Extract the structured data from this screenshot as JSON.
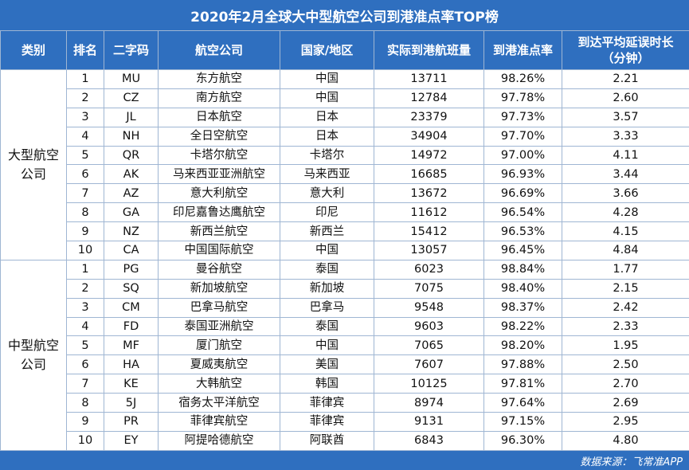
{
  "title": "2020年2月全球大中型航空公司到港准点率TOP榜",
  "headers": {
    "category": "类别",
    "rank": "排名",
    "code": "二字码",
    "airline": "航空公司",
    "region": "国家/地区",
    "flights": "实际到港航班量",
    "ontime": "到港准点率",
    "delay_line1": "到达平均延误时长",
    "delay_line2": "（分钟）"
  },
  "groups": [
    {
      "category": "大型航空公司",
      "rows": [
        {
          "rank": "1",
          "code": "MU",
          "airline": "东方航空",
          "region": "中国",
          "flights": "13711",
          "ontime": "98.26%",
          "delay": "2.21"
        },
        {
          "rank": "2",
          "code": "CZ",
          "airline": "南方航空",
          "region": "中国",
          "flights": "12784",
          "ontime": "97.78%",
          "delay": "2.60"
        },
        {
          "rank": "3",
          "code": "JL",
          "airline": "日本航空",
          "region": "日本",
          "flights": "23379",
          "ontime": "97.73%",
          "delay": "3.57"
        },
        {
          "rank": "4",
          "code": "NH",
          "airline": "全日空航空",
          "region": "日本",
          "flights": "34904",
          "ontime": "97.70%",
          "delay": "3.33"
        },
        {
          "rank": "5",
          "code": "QR",
          "airline": "卡塔尔航空",
          "region": "卡塔尔",
          "flights": "14972",
          "ontime": "97.00%",
          "delay": "4.11"
        },
        {
          "rank": "6",
          "code": "AK",
          "airline": "马来西亚亚洲航空",
          "region": "马来西亚",
          "flights": "16685",
          "ontime": "96.93%",
          "delay": "3.44"
        },
        {
          "rank": "7",
          "code": "AZ",
          "airline": "意大利航空",
          "region": "意大利",
          "flights": "13672",
          "ontime": "96.69%",
          "delay": "3.66"
        },
        {
          "rank": "8",
          "code": "GA",
          "airline": "印尼嘉鲁达鹰航空",
          "region": "印尼",
          "flights": "11612",
          "ontime": "96.54%",
          "delay": "4.28"
        },
        {
          "rank": "9",
          "code": "NZ",
          "airline": "新西兰航空",
          "region": "新西兰",
          "flights": "15412",
          "ontime": "96.53%",
          "delay": "4.15"
        },
        {
          "rank": "10",
          "code": "CA",
          "airline": "中国国际航空",
          "region": "中国",
          "flights": "13057",
          "ontime": "96.45%",
          "delay": "4.84"
        }
      ]
    },
    {
      "category": "中型航空公司",
      "rows": [
        {
          "rank": "1",
          "code": "PG",
          "airline": "曼谷航空",
          "region": "泰国",
          "flights": "6023",
          "ontime": "98.84%",
          "delay": "1.77"
        },
        {
          "rank": "2",
          "code": "SQ",
          "airline": "新加坡航空",
          "region": "新加坡",
          "flights": "7075",
          "ontime": "98.40%",
          "delay": "2.15"
        },
        {
          "rank": "3",
          "code": "CM",
          "airline": "巴拿马航空",
          "region": "巴拿马",
          "flights": "9548",
          "ontime": "98.37%",
          "delay": "2.42"
        },
        {
          "rank": "4",
          "code": "FD",
          "airline": "泰国亚洲航空",
          "region": "泰国",
          "flights": "9603",
          "ontime": "98.22%",
          "delay": "2.33"
        },
        {
          "rank": "5",
          "code": "MF",
          "airline": "厦门航空",
          "region": "中国",
          "flights": "7065",
          "ontime": "98.20%",
          "delay": "1.95"
        },
        {
          "rank": "6",
          "code": "HA",
          "airline": "夏威夷航空",
          "region": "美国",
          "flights": "7607",
          "ontime": "97.88%",
          "delay": "2.50"
        },
        {
          "rank": "7",
          "code": "KE",
          "airline": "大韩航空",
          "region": "韩国",
          "flights": "10125",
          "ontime": "97.81%",
          "delay": "2.70"
        },
        {
          "rank": "8",
          "code": "5J",
          "airline": "宿务太平洋航空",
          "region": "菲律宾",
          "flights": "8974",
          "ontime": "97.64%",
          "delay": "2.69"
        },
        {
          "rank": "9",
          "code": "PR",
          "airline": "菲律宾航空",
          "region": "菲律宾",
          "flights": "9131",
          "ontime": "97.15%",
          "delay": "2.95"
        },
        {
          "rank": "10",
          "code": "EY",
          "airline": "阿提哈德航空",
          "region": "阿联酋",
          "flights": "6843",
          "ontime": "96.30%",
          "delay": "4.80"
        }
      ]
    }
  ],
  "footer": "数据来源：飞常准APP",
  "colors": {
    "header_bg": "#2f6fbf",
    "border": "#9fb6d3"
  }
}
